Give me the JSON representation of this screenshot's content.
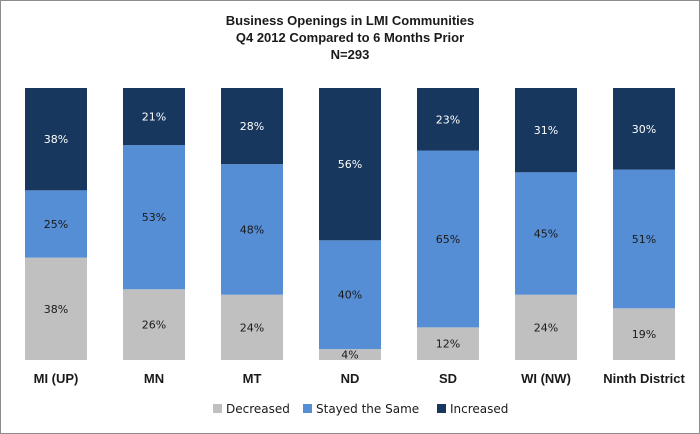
{
  "chart_data": {
    "type": "bar",
    "stacked": true,
    "title": [
      "Business Openings in LMI Communities",
      "Q4 2012 Compared to 6 Months Prior",
      "N=293"
    ],
    "categories": [
      "MI (UP)",
      "MN",
      "MT",
      "ND",
      "SD",
      "WI (NW)",
      "Ninth District"
    ],
    "series": [
      {
        "name": "Decreased",
        "color": "#c0c0c0",
        "values": [
          38,
          26,
          24,
          4,
          12,
          24,
          19
        ],
        "labels": [
          "38%",
          "26%",
          "24%",
          "4%",
          "12%",
          "24%",
          "19%"
        ]
      },
      {
        "name": "Stayed the Same",
        "color": "#558ed5",
        "values": [
          25,
          53,
          48,
          40,
          65,
          45,
          51
        ],
        "labels": [
          "25%",
          "53%",
          "48%",
          "40%",
          "65%",
          "45%",
          "51%"
        ]
      },
      {
        "name": "Increased",
        "color": "#17375e",
        "values": [
          38,
          21,
          28,
          56,
          23,
          31,
          30
        ],
        "labels": [
          "38%",
          "21%",
          "28%",
          "56%",
          "23%",
          "31%",
          "30%"
        ]
      }
    ],
    "ylim": [
      0,
      100
    ],
    "legend_position": "bottom",
    "grid": false
  }
}
